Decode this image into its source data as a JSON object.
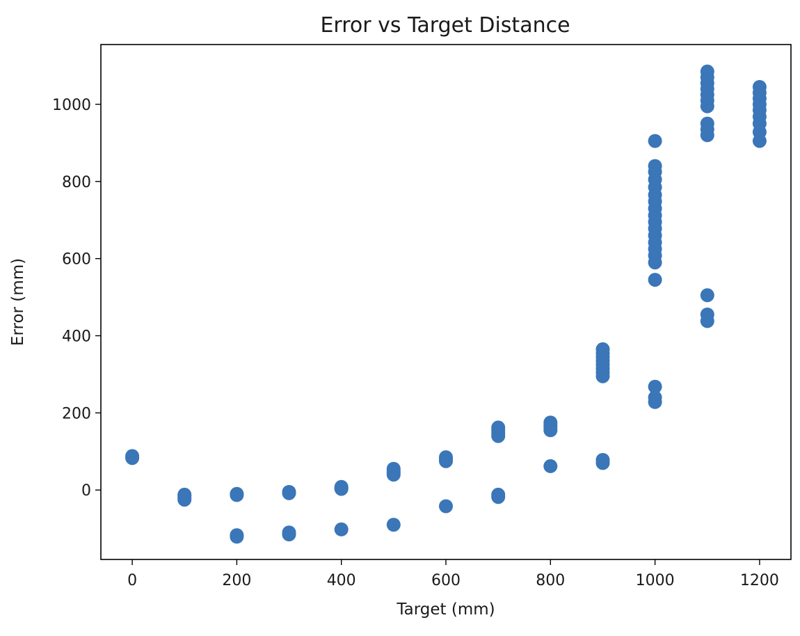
{
  "chart_data": {
    "type": "scatter",
    "title": "Error vs Target Distance",
    "xlabel": "Target (mm)",
    "ylabel": "Error (mm)",
    "xlim": [
      -60,
      1260
    ],
    "ylim": [
      -180,
      1155
    ],
    "xticks": [
      0,
      200,
      400,
      600,
      800,
      1000,
      1200
    ],
    "yticks": [
      0,
      200,
      400,
      600,
      800,
      1000
    ],
    "grid": false,
    "marker_color": "#3a76b8",
    "series": [
      {
        "points": [
          [
            0,
            85
          ],
          [
            0,
            88
          ],
          [
            0,
            83
          ],
          [
            100,
            -15
          ],
          [
            100,
            -20
          ],
          [
            100,
            -25
          ],
          [
            100,
            -12
          ],
          [
            200,
            -10
          ],
          [
            200,
            -13
          ],
          [
            200,
            -117
          ],
          [
            200,
            -121
          ],
          [
            300,
            -5
          ],
          [
            300,
            -8
          ],
          [
            300,
            -110
          ],
          [
            300,
            -115
          ],
          [
            400,
            5
          ],
          [
            400,
            8
          ],
          [
            400,
            3
          ],
          [
            400,
            -102
          ],
          [
            500,
            40
          ],
          [
            500,
            45
          ],
          [
            500,
            50
          ],
          [
            500,
            55
          ],
          [
            500,
            -90
          ],
          [
            600,
            75
          ],
          [
            600,
            80
          ],
          [
            600,
            85
          ],
          [
            600,
            -42
          ],
          [
            700,
            140
          ],
          [
            700,
            148
          ],
          [
            700,
            155
          ],
          [
            700,
            162
          ],
          [
            700,
            -12
          ],
          [
            700,
            -18
          ],
          [
            800,
            155
          ],
          [
            800,
            162
          ],
          [
            800,
            168
          ],
          [
            800,
            175
          ],
          [
            800,
            62
          ],
          [
            900,
            295
          ],
          [
            900,
            305
          ],
          [
            900,
            315
          ],
          [
            900,
            325
          ],
          [
            900,
            335
          ],
          [
            900,
            345
          ],
          [
            900,
            355
          ],
          [
            900,
            365
          ],
          [
            900,
            70
          ],
          [
            900,
            78
          ],
          [
            1000,
            905
          ],
          [
            1000,
            840
          ],
          [
            1000,
            825
          ],
          [
            1000,
            805
          ],
          [
            1000,
            785
          ],
          [
            1000,
            765
          ],
          [
            1000,
            748
          ],
          [
            1000,
            730
          ],
          [
            1000,
            712
          ],
          [
            1000,
            695
          ],
          [
            1000,
            678
          ],
          [
            1000,
            660
          ],
          [
            1000,
            642
          ],
          [
            1000,
            625
          ],
          [
            1000,
            608
          ],
          [
            1000,
            590
          ],
          [
            1000,
            545
          ],
          [
            1000,
            268
          ],
          [
            1000,
            240
          ],
          [
            1000,
            228
          ],
          [
            1100,
            1085
          ],
          [
            1100,
            1070
          ],
          [
            1100,
            1055
          ],
          [
            1100,
            1040
          ],
          [
            1100,
            1025
          ],
          [
            1100,
            1010
          ],
          [
            1100,
            995
          ],
          [
            1100,
            950
          ],
          [
            1100,
            935
          ],
          [
            1100,
            920
          ],
          [
            1100,
            505
          ],
          [
            1100,
            455
          ],
          [
            1100,
            438
          ],
          [
            1200,
            1045
          ],
          [
            1200,
            1030
          ],
          [
            1200,
            1015
          ],
          [
            1200,
            1000
          ],
          [
            1200,
            985
          ],
          [
            1200,
            968
          ],
          [
            1200,
            950
          ],
          [
            1200,
            928
          ],
          [
            1200,
            905
          ]
        ]
      }
    ]
  }
}
